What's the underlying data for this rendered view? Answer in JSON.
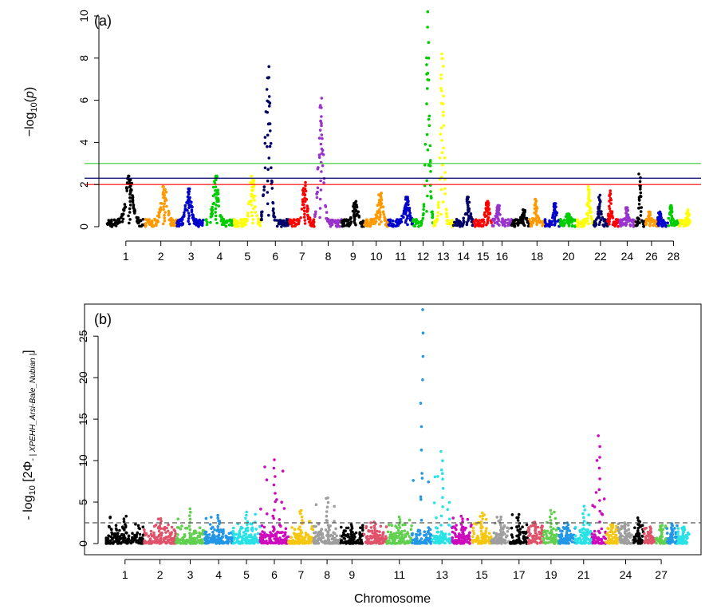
{
  "chart_data": [
    {
      "type": "scatter",
      "panel_label": "(a)",
      "xlabel": "",
      "ylabel_main": "−log",
      "ylabel_sub": "10",
      "ylabel_arg": "(",
      "ylabel_p": "p",
      "ylabel_close": ")",
      "ylim": [
        0,
        10
      ],
      "yticks": [
        "0",
        "2",
        "4",
        "6",
        "8",
        "10"
      ],
      "x_tick_labels": [
        "1",
        "2",
        "3",
        "4",
        "5",
        "6",
        "7",
        "8",
        "9",
        "10",
        "11",
        "12",
        "13",
        "14",
        "15",
        "16",
        "18",
        "20",
        "22",
        "24",
        "26",
        "28"
      ],
      "x_tick_chromosomes": [
        1,
        2,
        3,
        4,
        5,
        6,
        7,
        8,
        9,
        10,
        11,
        12,
        13,
        14,
        15,
        16,
        18,
        20,
        22,
        24,
        26,
        28
      ],
      "chromosome_colors": [
        "#000000",
        "#FF9900",
        "#0000CC",
        "#00CC00",
        "#FFFF00",
        "#000066",
        "#FF0000",
        "#9933CC"
      ],
      "threshold_lines": [
        {
          "value": 3.0,
          "color": "#33CC33"
        },
        {
          "value": 2.3,
          "color": "#000066"
        },
        {
          "value": 2.0,
          "color": "#FF0000"
        }
      ],
      "chromosomes": 29,
      "chromosome_peaks": [
        2.4,
        1.9,
        1.8,
        2.4,
        2.4,
        7.6,
        2.1,
        6.1,
        1.2,
        1.6,
        1.4,
        10.2,
        8.2,
        1.4,
        1.2,
        1.0,
        0.8,
        1.3,
        1.1,
        0.6,
        1.9,
        1.5,
        1.7,
        0.9,
        2.5,
        0.7,
        0.7,
        1.0,
        0.8
      ]
    },
    {
      "type": "scatter",
      "panel_label": "(b)",
      "xlabel": "Chromosome",
      "ylabel_main": "- log",
      "ylabel_sub": "10",
      "ylabel_rest": " [2Φ",
      "ylabel_rest_sub": "- | XPEHH_Arsi-Bale_Nubian |",
      "ylabel_close": "]",
      "ylim": [
        0,
        28
      ],
      "yticks": [
        "0",
        "5",
        "10",
        "15",
        "20",
        "25"
      ],
      "x_tick_labels": [
        "1",
        "2",
        "3",
        "4",
        "5",
        "6",
        "7",
        "8",
        "9",
        "11",
        "13",
        "15",
        "17",
        "19",
        "21",
        "24",
        "27"
      ],
      "x_tick_chromosomes": [
        1,
        2,
        3,
        4,
        5,
        6,
        7,
        8,
        9,
        11,
        13,
        15,
        17,
        19,
        21,
        24,
        27
      ],
      "chromosome_colors": [
        "#000000",
        "#DF536B",
        "#61D04F",
        "#2297E6",
        "#28E2E5",
        "#CD0BBC",
        "#F5C710",
        "#9E9E9E"
      ],
      "threshold_lines": [
        {
          "value": 2.5,
          "color": "#555555",
          "style": "dashed"
        }
      ],
      "chromosomes": 29,
      "chromosome_peaks": [
        3.3,
        3.0,
        4.2,
        3.4,
        3.8,
        10.1,
        4.0,
        5.5,
        2.3,
        2.6,
        3.2,
        28.2,
        11.1,
        3.3,
        3.7,
        3.2,
        3.5,
        2.6,
        4.0,
        2.5,
        4.5,
        13.0,
        2.4,
        2.5,
        3.1,
        2.0,
        2.2,
        2.4,
        2.0
      ]
    }
  ]
}
